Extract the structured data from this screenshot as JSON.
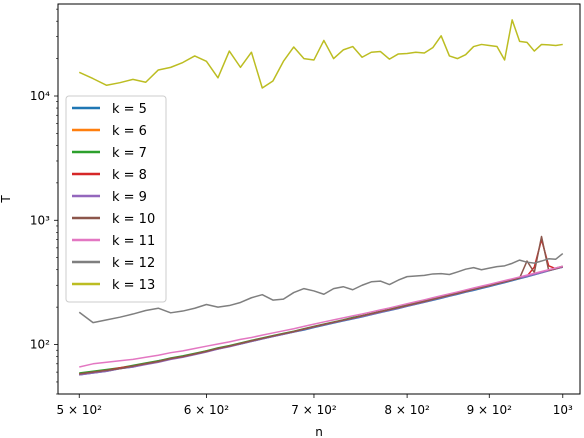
{
  "chart_data": {
    "type": "line",
    "title": "",
    "xlabel": "n",
    "ylabel": "T",
    "xscale": "log",
    "yscale": "log",
    "xlim": [
      485,
      1025
    ],
    "ylim": [
      40,
      55000
    ],
    "grid": false,
    "legend_placement": "upper-left",
    "x_major_ticks": [
      {
        "value": 500,
        "label": "5 × 10²"
      },
      {
        "value": 600,
        "label": "6 × 10²"
      },
      {
        "value": 700,
        "label": "7 × 10²"
      },
      {
        "value": 800,
        "label": "8 × 10²"
      },
      {
        "value": 900,
        "label": "9 × 10²"
      },
      {
        "value": 1000,
        "label": "10³"
      }
    ],
    "y_major_ticks": [
      {
        "value": 100,
        "label": "10²"
      },
      {
        "value": 1000,
        "label": "10³"
      },
      {
        "value": 10000,
        "label": "10⁴"
      }
    ],
    "x": [
      500,
      510,
      520,
      530,
      540,
      550,
      560,
      570,
      580,
      590,
      600,
      610,
      620,
      630,
      640,
      650,
      660,
      670,
      680,
      690,
      700,
      710,
      720,
      730,
      740,
      750,
      760,
      770,
      780,
      790,
      800,
      810,
      820,
      830,
      840,
      850,
      860,
      870,
      880,
      890,
      900,
      910,
      920,
      930,
      940,
      950,
      960,
      970,
      980,
      990,
      1000
    ],
    "series": [
      {
        "name": "k = 5",
        "color": "#1f77b4",
        "values": [
          57,
          59,
          61,
          64,
          66,
          70,
          74,
          77,
          80,
          84,
          88,
          92,
          97,
          101,
          106,
          111,
          116,
          121,
          126,
          131,
          137,
          143,
          149,
          155,
          161,
          167,
          174,
          181,
          188,
          195,
          203,
          211,
          219,
          227,
          236,
          245,
          254,
          264,
          273,
          283,
          293,
          304,
          315,
          327,
          339,
          351,
          364,
          378,
          392,
          406,
          420
        ]
      },
      {
        "name": "k = 6",
        "color": "#ff7f0e",
        "values": [
          58,
          60,
          62,
          64,
          67,
          70,
          73,
          77,
          80,
          84,
          89,
          93,
          97,
          102,
          107,
          112,
          117,
          122,
          127,
          133,
          139,
          145,
          151,
          157,
          163,
          170,
          177,
          184,
          191,
          198,
          206,
          214,
          222,
          231,
          240,
          249,
          258,
          268,
          278,
          288,
          298,
          309,
          320,
          331,
          343,
          355,
          368,
          381,
          394,
          408,
          422
        ]
      },
      {
        "name": "k = 7",
        "color": "#2ca02c",
        "values": [
          59,
          61,
          63,
          65,
          68,
          71,
          74,
          78,
          81,
          85,
          89,
          94,
          98,
          103,
          108,
          113,
          118,
          123,
          128,
          134,
          140,
          146,
          152,
          158,
          165,
          171,
          178,
          185,
          192,
          200,
          208,
          216,
          224,
          233,
          242,
          251,
          261,
          270,
          280,
          291,
          301,
          312,
          323,
          335,
          347,
          359,
          372,
          385,
          398,
          412,
          427
        ]
      },
      {
        "name": "k = 8",
        "color": "#d62728",
        "values": [
          58,
          60,
          62,
          65,
          67,
          70,
          73,
          77,
          80,
          84,
          88,
          93,
          97,
          102,
          107,
          112,
          117,
          122,
          127,
          133,
          139,
          145,
          151,
          157,
          163,
          170,
          177,
          184,
          191,
          198,
          206,
          214,
          222,
          231,
          240,
          249,
          258,
          268,
          278,
          288,
          298,
          309,
          320,
          331,
          343,
          355,
          420,
          700,
          430,
          408,
          423
        ]
      },
      {
        "name": "k = 9",
        "color": "#9467bd",
        "values": [
          57,
          59,
          61,
          64,
          66,
          69,
          72,
          76,
          79,
          83,
          87,
          92,
          96,
          101,
          106,
          111,
          116,
          121,
          126,
          132,
          138,
          144,
          150,
          156,
          162,
          168,
          175,
          182,
          189,
          196,
          204,
          212,
          220,
          229,
          238,
          247,
          256,
          266,
          276,
          286,
          296,
          307,
          318,
          330,
          342,
          354,
          367,
          380,
          393,
          407,
          420
        ]
      },
      {
        "name": "k = 10",
        "color": "#8c564b",
        "values": [
          58,
          60,
          62,
          64,
          67,
          70,
          73,
          77,
          80,
          84,
          88,
          93,
          97,
          102,
          107,
          112,
          117,
          122,
          127,
          133,
          139,
          145,
          151,
          157,
          163,
          170,
          177,
          184,
          191,
          198,
          206,
          214,
          222,
          231,
          240,
          249,
          258,
          268,
          278,
          288,
          298,
          309,
          320,
          331,
          343,
          470,
          380,
          740,
          395,
          408,
          425
        ]
      },
      {
        "name": "k = 11",
        "color": "#e377c2",
        "values": [
          66,
          70,
          72,
          74,
          76,
          79,
          82,
          86,
          89,
          93,
          97,
          101,
          105,
          110,
          114,
          119,
          124,
          129,
          134,
          140,
          146,
          152,
          158,
          164,
          170,
          176,
          183,
          190,
          197,
          205,
          213,
          221,
          229,
          238,
          247,
          256,
          265,
          275,
          285,
          295,
          305,
          316,
          327,
          338,
          350,
          362,
          374,
          387,
          400,
          413,
          427
        ]
      },
      {
        "name": "k = 12",
        "color": "#7f7f7f",
        "values": [
          182,
          150,
          158,
          166,
          176,
          188,
          196,
          180,
          186,
          196,
          210,
          200,
          206,
          218,
          238,
          252,
          228,
          232,
          262,
          282,
          270,
          254,
          282,
          292,
          276,
          300,
          320,
          324,
          304,
          330,
          352,
          356,
          360,
          370,
          372,
          366,
          384,
          404,
          416,
          400,
          412,
          424,
          430,
          450,
          478,
          460,
          452,
          470,
          490,
          486,
          540
        ]
      },
      {
        "name": "k = 13",
        "color": "#bcbd22",
        "values": [
          15500,
          13800,
          12200,
          12800,
          13600,
          12900,
          16200,
          17000,
          18600,
          21000,
          19000,
          14000,
          23000,
          17000,
          22500,
          11600,
          13200,
          19000,
          24800,
          20000,
          19500,
          28000,
          20000,
          23500,
          25000,
          20500,
          22500,
          22800,
          19800,
          21800,
          22000,
          22500,
          22200,
          24500,
          30500,
          21000,
          20000,
          21500,
          25000,
          26000,
          25500,
          25000,
          19500,
          41000,
          27500,
          27000,
          23000,
          26000,
          25800,
          25500,
          26000
        ]
      }
    ]
  }
}
